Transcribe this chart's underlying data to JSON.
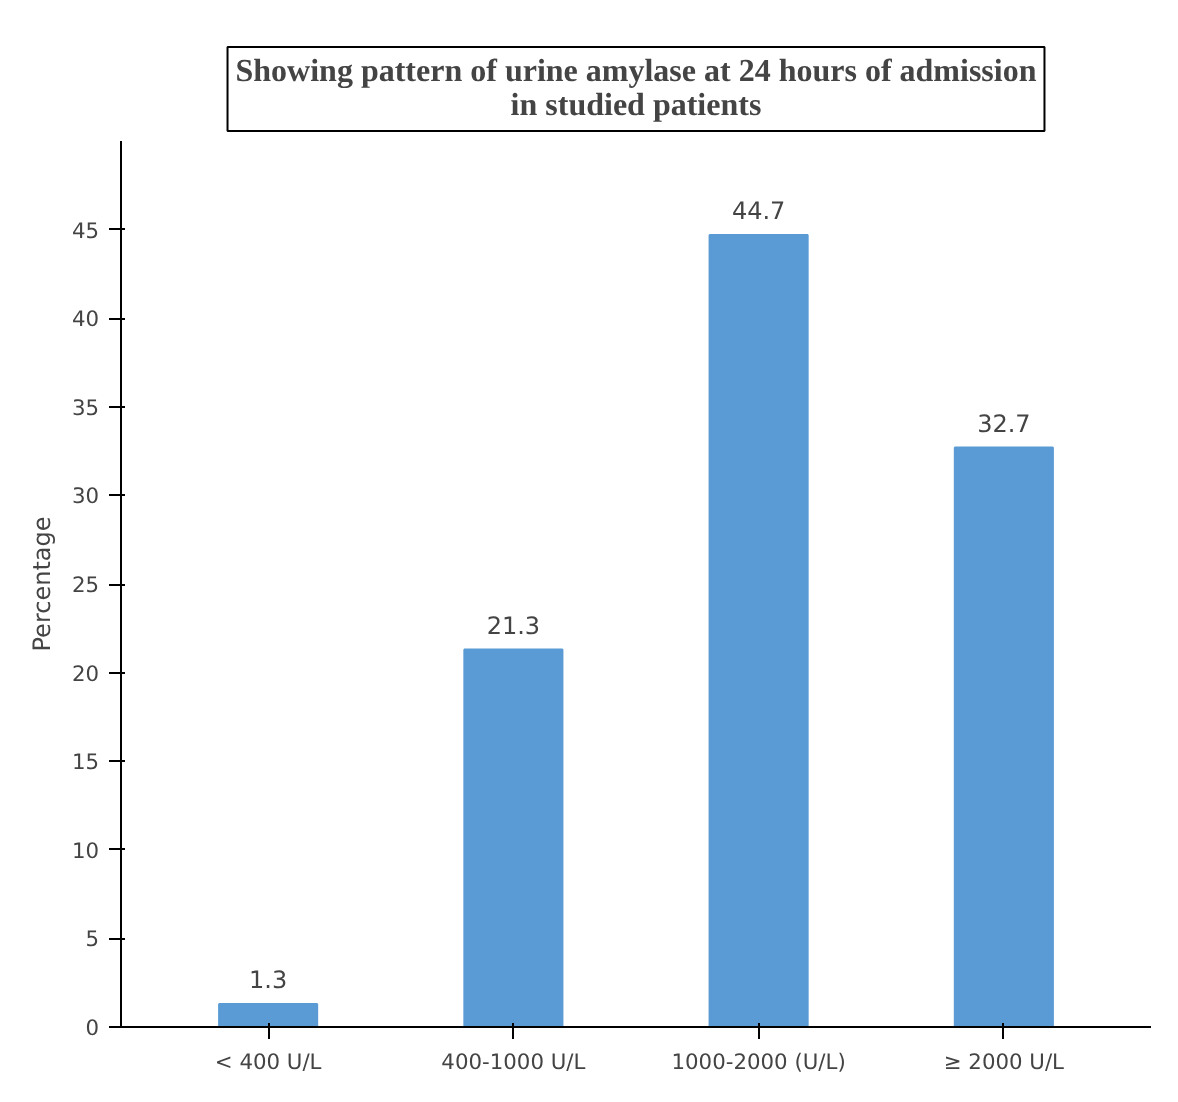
{
  "chart_data": {
    "type": "bar",
    "title": "Showing pattern of urine amylase at 24 hours of admission in studied patients",
    "ylabel": "Percentage",
    "categories": [
      "< 400 U/L",
      "400-1000 U/L",
      "1000-2000 (U/L)",
      "≥ 2000 U/L"
    ],
    "values": [
      1.3,
      21.3,
      44.7,
      32.7
    ],
    "color": "#5b9bd5",
    "ylim": [
      0,
      50
    ],
    "yticks": [
      0,
      5,
      10,
      15,
      20,
      25,
      30,
      35,
      40,
      45
    ],
    "data_labels": true,
    "grid": false
  }
}
